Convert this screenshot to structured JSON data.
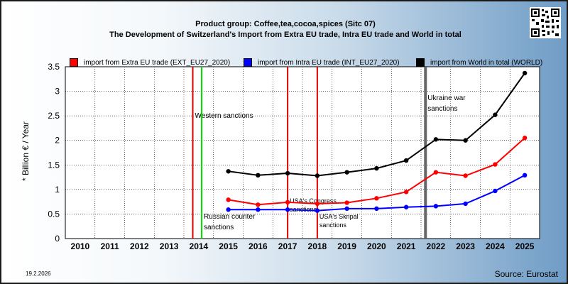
{
  "header": {
    "title_line1": "Product group: Coffee,tea,cocoa,spices (Sitc 07)",
    "title_line2": "The Development of Switzerland's Import from Extra EU trade, Intra EU trade and World in total"
  },
  "footer": {
    "date": "19.2.2026",
    "source": "Source: Eurostat"
  },
  "qr_icon": "qr-code-icon",
  "chart_data": {
    "type": "line",
    "ylabel": "* Billion € / Year",
    "ylim": [
      0,
      3.5
    ],
    "yticks": [
      "0",
      "0.5",
      "1",
      "1.5",
      "2",
      "2.5",
      "3",
      "3.5"
    ],
    "categories": [
      "2010",
      "2011",
      "2012",
      "2013",
      "2014",
      "2015",
      "2016",
      "2017",
      "2018",
      "2019",
      "2020",
      "2021",
      "2022",
      "2023",
      "2024",
      "2025"
    ],
    "grid": true,
    "legend_position": "top",
    "series": [
      {
        "name": "import from Extra EU trade (EXT_EU27_2020)",
        "color": "#ff0000",
        "values": [
          null,
          null,
          null,
          null,
          null,
          0.79,
          0.69,
          0.74,
          0.71,
          0.73,
          0.82,
          0.95,
          1.35,
          1.28,
          1.51,
          2.05
        ]
      },
      {
        "name": "import from Intra EU trade (INT_EU27_2020)",
        "color": "#0000ff",
        "values": [
          null,
          null,
          null,
          null,
          null,
          0.59,
          0.59,
          0.59,
          0.57,
          0.61,
          0.61,
          0.64,
          0.66,
          0.71,
          0.97,
          1.29
        ]
      },
      {
        "name": "import from World in total (WORLD)",
        "color": "#000000",
        "values": [
          null,
          null,
          null,
          null,
          null,
          1.37,
          1.29,
          1.33,
          1.28,
          1.35,
          1.43,
          1.59,
          2.02,
          2.0,
          2.52,
          3.37
        ]
      }
    ],
    "events": [
      {
        "label": "Western sanctions",
        "x": 2013.8,
        "color": "#dd0000",
        "label_pos": "high"
      },
      {
        "label": "Russian counter sanctions",
        "x": 2014.1,
        "color": "#00dd00",
        "label_pos": "low"
      },
      {
        "label": "USA's Congress sanctions",
        "x": 2017.0,
        "color": "#dd0000",
        "label_pos": "mid"
      },
      {
        "label": "USA's Skripal sanctions",
        "x": 2018.0,
        "color": "#dd0000",
        "label_pos": "low"
      },
      {
        "label": "Ukraine war sanctions",
        "x": 2021.65,
        "color": "#666666",
        "label_pos": "top"
      }
    ]
  }
}
